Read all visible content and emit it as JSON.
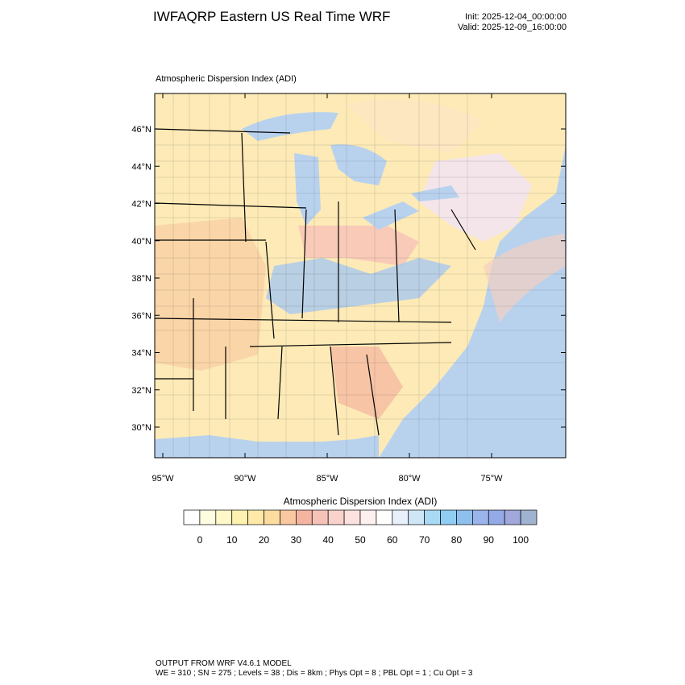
{
  "header": {
    "title": "IWFAQRP Eastern US Real Time WRF",
    "init": "Init: 2025-12-04_00:00:00",
    "valid": "Valid: 2025-12-09_16:00:00"
  },
  "map": {
    "title": "Atmospheric Dispersion Index   (ADI)",
    "lat_labels": [
      "46°N",
      "44°N",
      "42°N",
      "40°N",
      "38°N",
      "36°N",
      "34°N",
      "32°N",
      "30°N"
    ],
    "lon_labels": [
      "95°W",
      "90°W",
      "85°W",
      "80°W",
      "75°W"
    ]
  },
  "colorbar": {
    "title": "Atmospheric Dispersion Index  (ADI)",
    "labels": [
      0,
      10,
      20,
      30,
      40,
      50,
      60,
      70,
      80,
      90,
      100
    ],
    "colors": [
      "#ffffff",
      "#fffde0",
      "#fff8c8",
      "#fff2b0",
      "#ffe9a8",
      "#fddca0",
      "#f9c8a0",
      "#f4b4a0",
      "#f6c2b8",
      "#f9d2cc",
      "#fbe2de",
      "#fdf0ee",
      "#ffffff",
      "#e8f0fb",
      "#cfe6f7",
      "#a8daf5",
      "#8fcdf3",
      "#8ec0ee",
      "#9ab4ec",
      "#94aae6",
      "#a0a8dc",
      "#9fb2cf"
    ]
  },
  "footer": {
    "line1": "OUTPUT FROM WRF V4.6.1 MODEL",
    "line2": "WE = 310 ; SN = 275 ; Levels = 38 ; Dis = 8km ; Phys Opt = 8 ; PBL Opt = 1 ; Cu Opt = 3"
  }
}
